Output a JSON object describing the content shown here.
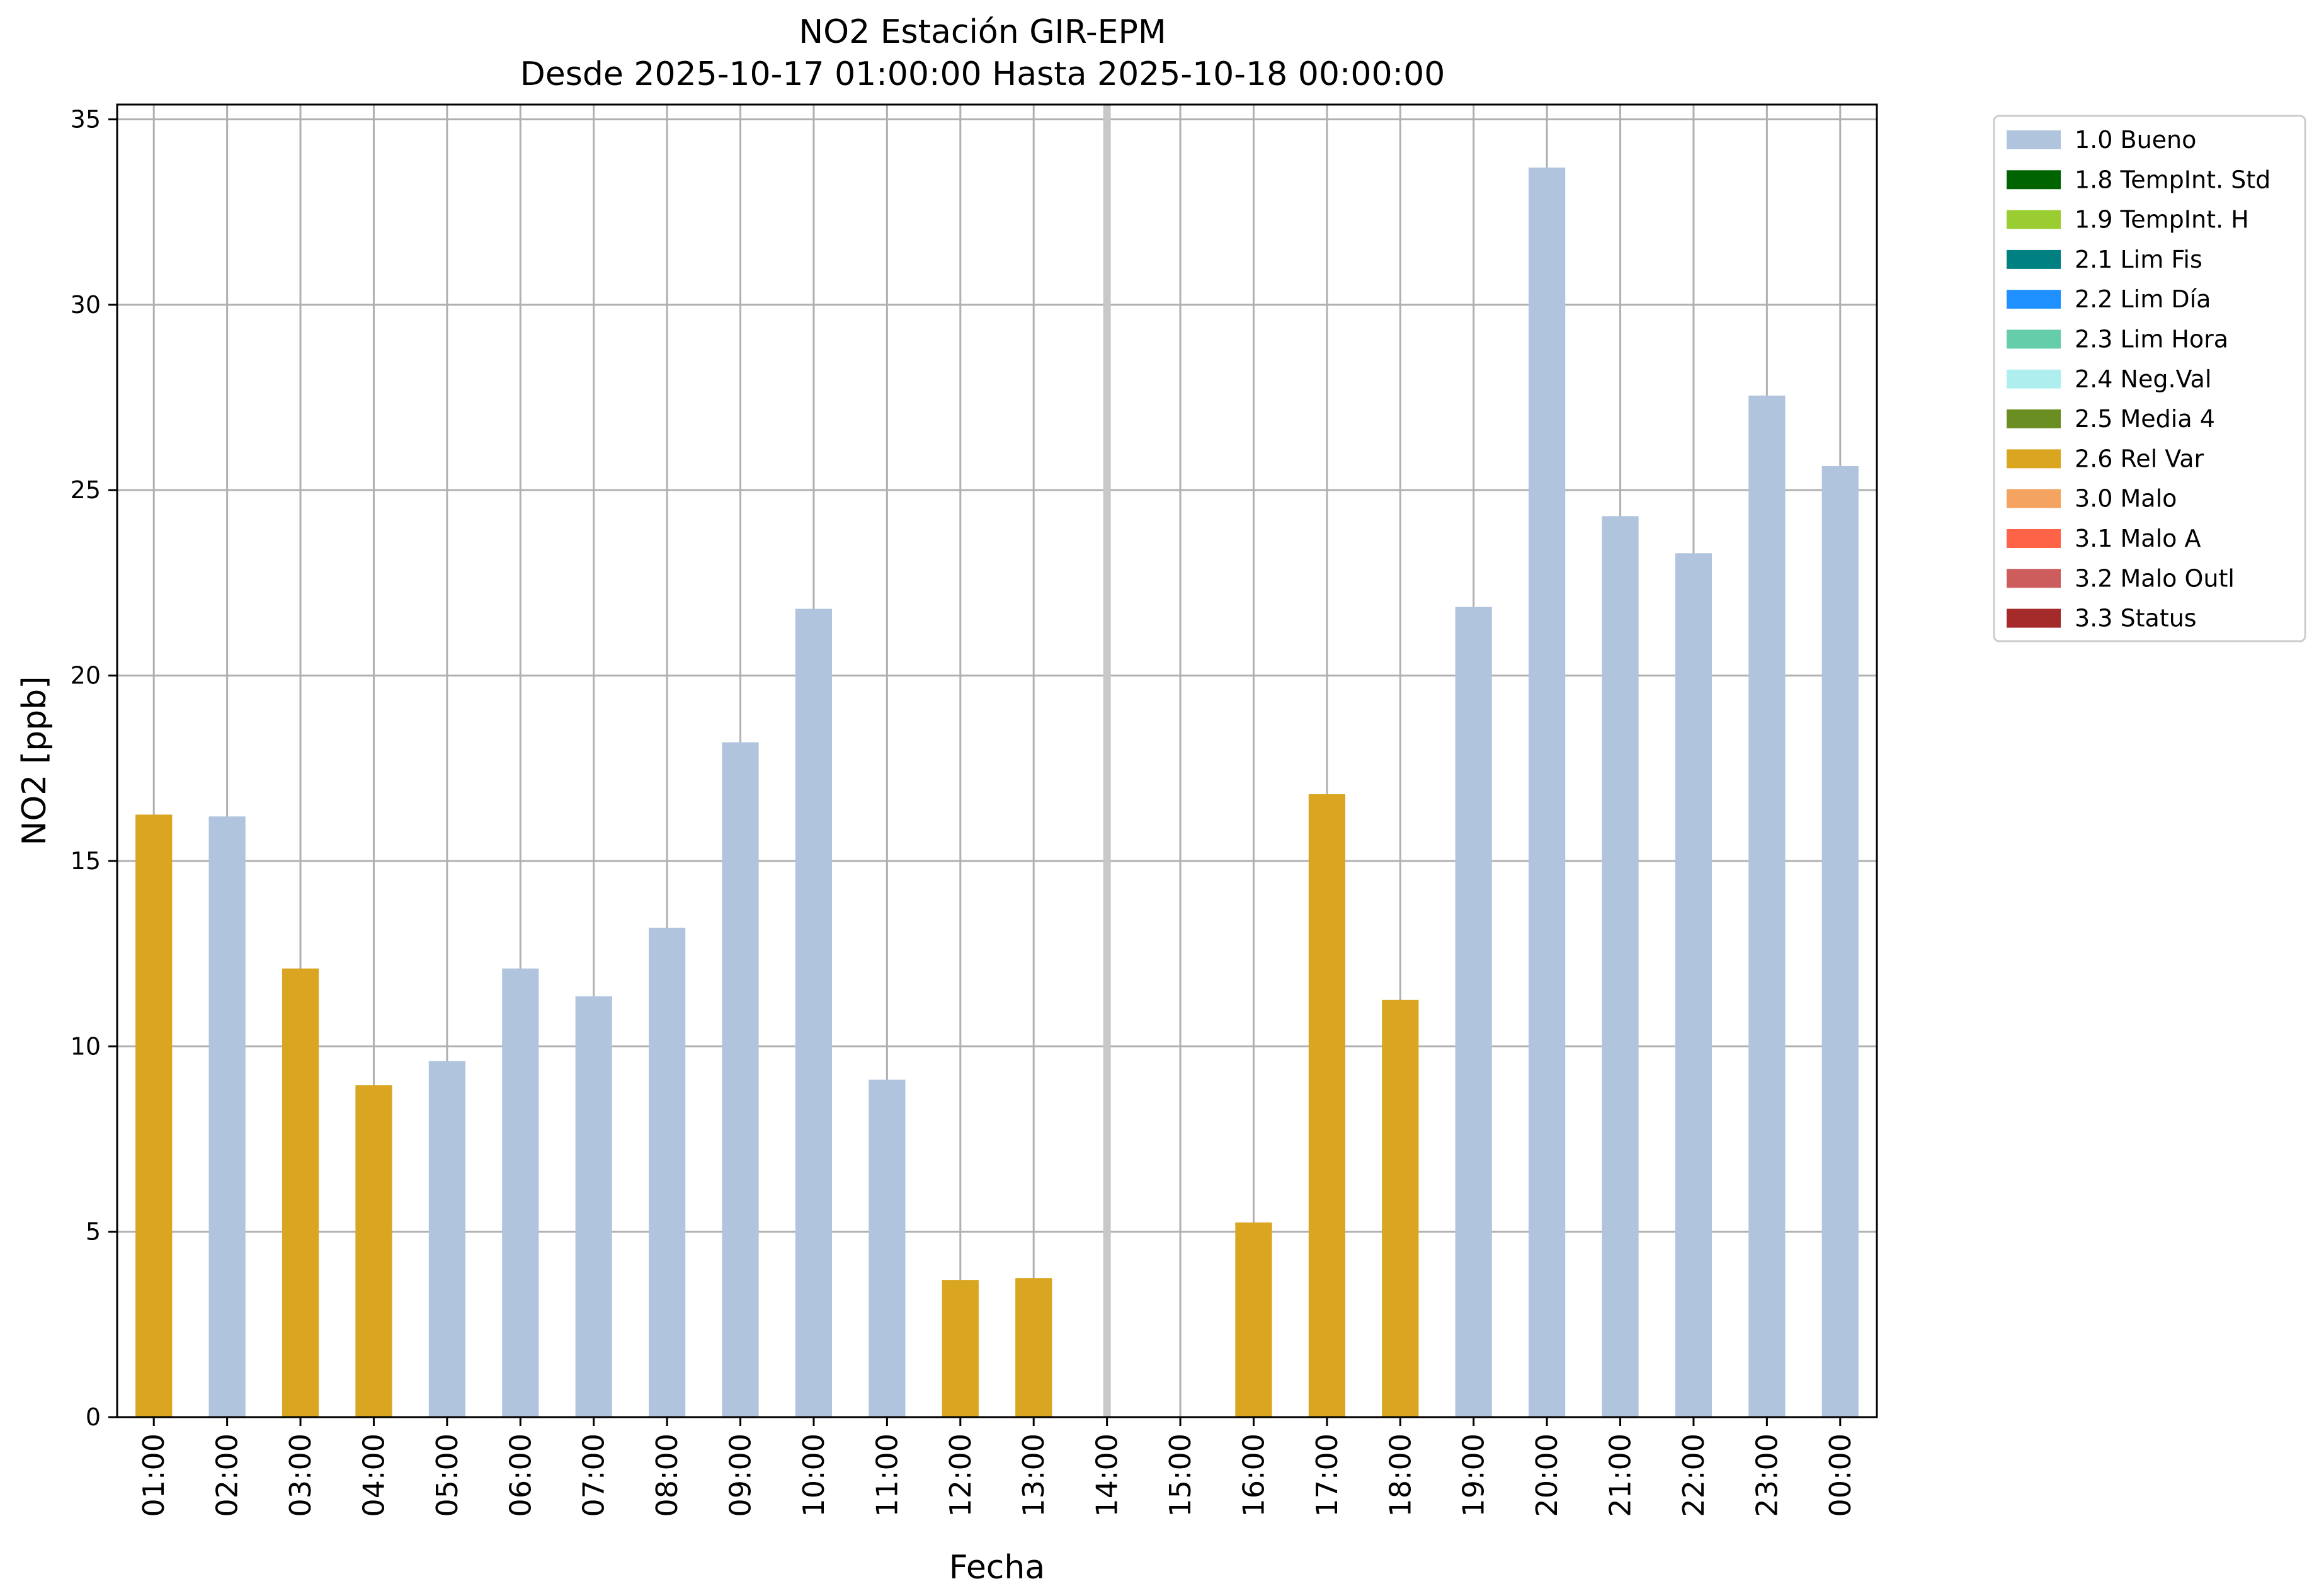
{
  "chart_data": {
    "type": "bar",
    "title": "NO2 Estación GIR-EPM",
    "subtitle": "Desde 2025-10-17 01:00:00 Hasta 2025-10-18 00:00:00",
    "xlabel": "Fecha",
    "ylabel": "NO2 [ppb]",
    "ylim": [
      0,
      35.4
    ],
    "yticks": [
      0,
      5,
      10,
      15,
      20,
      25,
      30,
      35
    ],
    "grid": true,
    "legend_position": "outside-top-right",
    "categories": [
      "01:00",
      "02:00",
      "03:00",
      "04:00",
      "05:00",
      "06:00",
      "07:00",
      "08:00",
      "09:00",
      "10:00",
      "11:00",
      "12:00",
      "13:00",
      "14:00",
      "15:00",
      "16:00",
      "17:00",
      "18:00",
      "19:00",
      "20:00",
      "21:00",
      "22:00",
      "23:00",
      "00:00"
    ],
    "values": [
      16.25,
      16.2,
      12.1,
      8.95,
      9.6,
      12.1,
      11.35,
      13.2,
      18.2,
      21.8,
      9.1,
      3.7,
      3.75,
      null,
      null,
      5.25,
      16.8,
      11.25,
      21.85,
      33.7,
      24.3,
      23.3,
      27.55,
      25.65
    ],
    "flags": [
      "2.6 Rel Var",
      "1.0 Bueno",
      "2.6 Rel Var",
      "2.6 Rel Var",
      "1.0 Bueno",
      "1.0 Bueno",
      "1.0 Bueno",
      "1.0 Bueno",
      "1.0 Bueno",
      "1.0 Bueno",
      "1.0 Bueno",
      "2.6 Rel Var",
      "2.6 Rel Var",
      null,
      null,
      "2.6 Rel Var",
      "2.6 Rel Var",
      "2.6 Rel Var",
      "1.0 Bueno",
      "1.0 Bueno",
      "1.0 Bueno",
      "1.0 Bueno",
      "1.0 Bueno",
      "1.0 Bueno"
    ],
    "highlight_gridline_category": "14:00",
    "legend": [
      {
        "label": "1.0 Bueno",
        "color": "#b0c4de"
      },
      {
        "label": "1.8 TempInt. Std",
        "color": "#006400"
      },
      {
        "label": "1.9 TempInt. H",
        "color": "#9acd32"
      },
      {
        "label": "2.1 Lim Fis",
        "color": "#008080"
      },
      {
        "label": "2.2 Lim Día",
        "color": "#1e90ff"
      },
      {
        "label": "2.3 Lim Hora",
        "color": "#66cdaa"
      },
      {
        "label": "2.4 Neg.Val",
        "color": "#afeeee"
      },
      {
        "label": "2.5 Media 4",
        "color": "#6b8e23"
      },
      {
        "label": "2.6 Rel Var",
        "color": "#daa520"
      },
      {
        "label": "3.0 Malo",
        "color": "#f4a460"
      },
      {
        "label": "3.1 Malo A",
        "color": "#ff6347"
      },
      {
        "label": "3.2 Malo Outl",
        "color": "#cd5c5c"
      },
      {
        "label": "3.3 Status",
        "color": "#a52a2a"
      }
    ]
  }
}
